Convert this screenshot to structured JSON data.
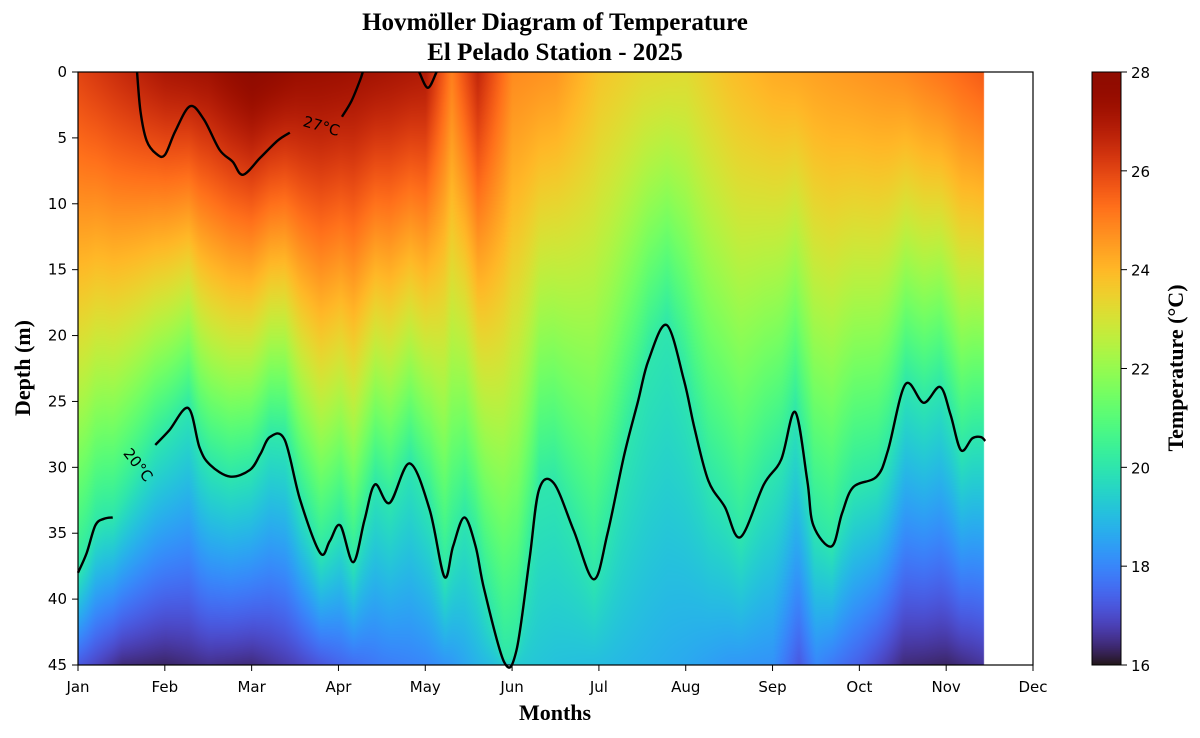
{
  "chart_data": {
    "type": "heatmap",
    "title": "Hovmöller Diagram of Temperature",
    "subtitle": "El Pelado Station - 2025",
    "xlabel": "Months",
    "ylabel": "Depth (m)",
    "colorbar_label": "Temperature (°C)",
    "colormap": "turbo",
    "x_ticks": [
      "Jan",
      "Feb",
      "Mar",
      "Apr",
      "May",
      "Jun",
      "Jul",
      "Aug",
      "Sep",
      "Oct",
      "Nov",
      "Dec"
    ],
    "xlim_months": [
      0,
      11
    ],
    "data_end_month": 10.43,
    "y_ticks": [
      "0",
      "5",
      "10",
      "15",
      "20",
      "25",
      "30",
      "35",
      "40",
      "45"
    ],
    "ylim": [
      45,
      0
    ],
    "colorbar_ticks": [
      "16",
      "18",
      "20",
      "22",
      "24",
      "26",
      "28"
    ],
    "clim": [
      16,
      28
    ],
    "field": {
      "months": [
        0,
        0.5,
        1,
        1.5,
        2,
        2.5,
        3,
        3.5,
        4,
        4.3,
        4.6,
        5,
        5.5,
        6,
        6.5,
        7,
        7.5,
        8,
        8.3,
        8.5,
        9,
        9.5,
        10,
        10.43
      ],
      "surface_temp": [
        26,
        26.5,
        27,
        27.2,
        27.8,
        27.4,
        27.3,
        27.1,
        26.9,
        25,
        26.6,
        24.8,
        24.6,
        23.7,
        23.3,
        23.2,
        23.8,
        24.2,
        24.3,
        24.4,
        24.6,
        24.8,
        25.2,
        25.6
      ],
      "bottom_temp": [
        17.2,
        16.4,
        16.3,
        16.5,
        16.4,
        16.8,
        17.4,
        17.8,
        18,
        18.3,
        18.8,
        19.3,
        19.1,
        19.0,
        18.8,
        18.6,
        18.3,
        18.2,
        17.2,
        18.0,
        17.3,
        16.4,
        16.3,
        16.6
      ]
    },
    "contours": [
      {
        "level": 27,
        "label": "27°C",
        "segments": [
          [
            [
              0.68,
              0
            ],
            [
              0.72,
              3
            ],
            [
              0.79,
              5.2
            ],
            [
              0.9,
              6.2
            ],
            [
              1.0,
              6.3
            ],
            [
              1.12,
              4.5
            ],
            [
              1.29,
              2.6
            ],
            [
              1.45,
              3.6
            ],
            [
              1.63,
              5.9
            ],
            [
              1.78,
              6.8
            ],
            [
              1.9,
              7.8
            ],
            [
              2.1,
              6.5
            ],
            [
              2.3,
              5.2
            ],
            [
              2.44,
              4.6
            ]
          ],
          [
            [
              3.04,
              3.4
            ],
            [
              3.15,
              2.2
            ],
            [
              3.25,
              0.6
            ],
            [
              3.28,
              0
            ]
          ],
          [
            [
              3.93,
              0
            ],
            [
              4.03,
              1.2
            ],
            [
              4.13,
              0
            ]
          ]
        ]
      },
      {
        "level": 20,
        "label": "20°C",
        "segments": [
          [
            [
              0,
              38
            ],
            [
              0.1,
              36.5
            ],
            [
              0.2,
              34.4
            ],
            [
              0.3,
              33.9
            ],
            [
              0.4,
              33.8
            ]
          ],
          [
            [
              0.89,
              28.3
            ],
            [
              1.05,
              27.2
            ],
            [
              1.27,
              25.5
            ],
            [
              1.4,
              28.5
            ],
            [
              1.52,
              29.8
            ],
            [
              1.75,
              30.7
            ],
            [
              1.98,
              30.2
            ],
            [
              2.1,
              29
            ],
            [
              2.21,
              27.7
            ],
            [
              2.38,
              27.9
            ],
            [
              2.56,
              32.5
            ],
            [
              2.79,
              36.5
            ],
            [
              2.9,
              35.6
            ],
            [
              3.02,
              34.4
            ],
            [
              3.17,
              37.2
            ],
            [
              3.3,
              34
            ],
            [
              3.42,
              31.3
            ],
            [
              3.59,
              32.7
            ],
            [
              3.82,
              29.7
            ],
            [
              4.05,
              33.2
            ],
            [
              4.22,
              38.3
            ],
            [
              4.32,
              36
            ],
            [
              4.45,
              33.8
            ],
            [
              4.58,
              36
            ],
            [
              4.68,
              39.3
            ],
            [
              4.91,
              44.8
            ],
            [
              5.05,
              43.9
            ],
            [
              5.2,
              37
            ],
            [
              5.31,
              31.7
            ],
            [
              5.48,
              31.2
            ],
            [
              5.71,
              34.8
            ],
            [
              5.94,
              38.5
            ],
            [
              6.1,
              35
            ],
            [
              6.29,
              29.1
            ],
            [
              6.45,
              25
            ],
            [
              6.57,
              21.9
            ],
            [
              6.78,
              19.2
            ],
            [
              6.98,
              23.4
            ],
            [
              7.1,
              27
            ],
            [
              7.26,
              31
            ],
            [
              7.45,
              33
            ],
            [
              7.63,
              35.3
            ],
            [
              7.9,
              31.3
            ],
            [
              8.1,
              29.4
            ],
            [
              8.26,
              25.8
            ],
            [
              8.4,
              31
            ],
            [
              8.47,
              34.4
            ],
            [
              8.68,
              36
            ],
            [
              8.8,
              33.5
            ],
            [
              8.93,
              31.5
            ],
            [
              9.2,
              30.7
            ],
            [
              9.33,
              28.7
            ],
            [
              9.53,
              23.7
            ],
            [
              9.74,
              25.1
            ],
            [
              9.93,
              23.9
            ],
            [
              10.05,
              26
            ],
            [
              10.17,
              28.7
            ],
            [
              10.3,
              27.8
            ],
            [
              10.4,
              27.7
            ],
            [
              10.45,
              28
            ]
          ]
        ]
      }
    ]
  }
}
